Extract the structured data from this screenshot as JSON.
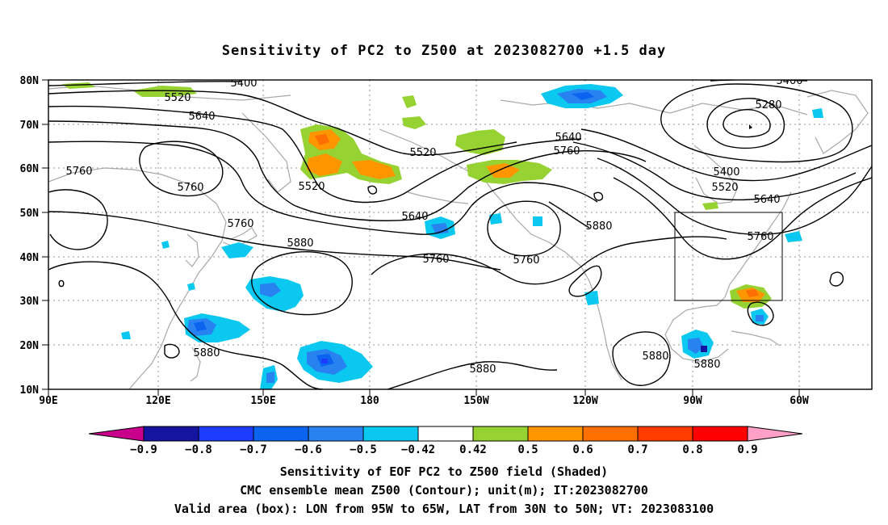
{
  "title": "Sensitivity of PC2 to Z500 at 2023082700 +1.5 day",
  "map": {
    "lat_ticks": [
      "10N",
      "20N",
      "30N",
      "40N",
      "50N",
      "60N",
      "70N",
      "80N"
    ],
    "lon_ticks": [
      "90E",
      "120E",
      "150E",
      "180",
      "150W",
      "120W",
      "90W",
      "60W"
    ],
    "contour_labels": [
      {
        "text": "5400"
      },
      {
        "text": "5520"
      },
      {
        "text": "5640"
      },
      {
        "text": "5760"
      },
      {
        "text": "5760"
      },
      {
        "text": "5520"
      },
      {
        "text": "5520"
      },
      {
        "text": "5640"
      },
      {
        "text": "5640"
      },
      {
        "text": "5760"
      },
      {
        "text": "5760"
      },
      {
        "text": "5880"
      },
      {
        "text": "5880"
      },
      {
        "text": "5880"
      },
      {
        "text": "5760"
      },
      {
        "text": "5760"
      },
      {
        "text": "5880"
      },
      {
        "text": "5880"
      },
      {
        "text": "5880"
      },
      {
        "text": "5400"
      },
      {
        "text": "5280"
      },
      {
        "text": "5400"
      },
      {
        "text": "5520"
      },
      {
        "text": "5640"
      },
      {
        "text": "5760"
      }
    ],
    "valid_box": {
      "lon_from": "95W",
      "lon_to": "65W",
      "lat_from": "30N",
      "lat_to": "50N"
    }
  },
  "colorbar": {
    "labels": [
      "-0.9",
      "-0.8",
      "-0.7",
      "-0.6",
      "-0.5",
      "-0.42",
      "0.42",
      "0.5",
      "0.6",
      "0.7",
      "0.8",
      "0.9"
    ],
    "colors": [
      "#c8008c",
      "#1414a0",
      "#1e3cff",
      "#0a64f0",
      "#2882f0",
      "#0ac8f0",
      "#ffffff",
      "#96d232",
      "#ff9600",
      "#ff6e00",
      "#ff3c00",
      "#ff0000",
      "#ffa0c8"
    ]
  },
  "captions": [
    "Sensitivity of EOF PC2 to Z500 field (Shaded)",
    "CMC ensemble mean Z500 (Contour); unit(m); IT:2023082700",
    "Valid area (box): LON from 95W to 65W, LAT from 30N to 50N; VT: 2023083100"
  ]
}
